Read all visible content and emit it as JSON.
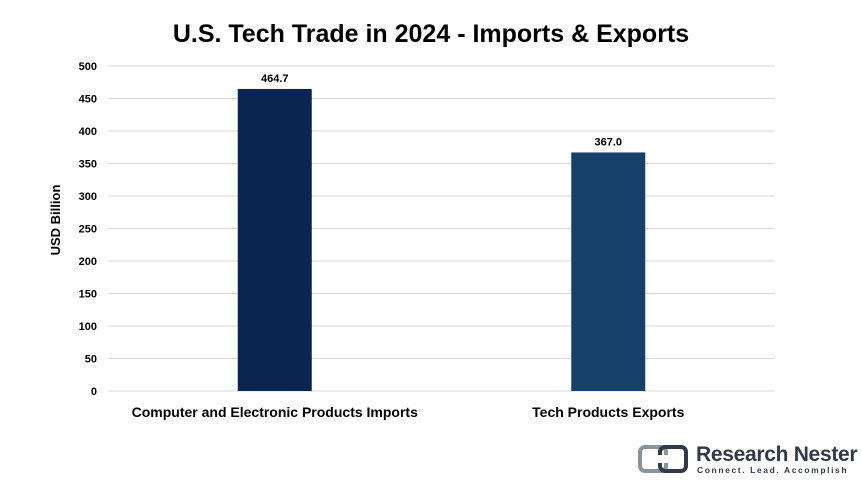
{
  "chart_data": {
    "type": "bar",
    "title": "U.S. Tech Trade in 2024 - Imports & Exports",
    "xlabel": "",
    "ylabel": "USD Billion",
    "categories": [
      "Computer and Electronic Products Imports",
      "Tech Products Exports"
    ],
    "values": [
      464.7,
      367.0
    ],
    "value_labels": [
      "464.7",
      "367.0"
    ],
    "bar_colors": [
      "#0b2553",
      "#163f6a"
    ],
    "ylim": [
      0,
      500
    ],
    "yticks": [
      0,
      50,
      100,
      150,
      200,
      250,
      300,
      350,
      400,
      450,
      500
    ],
    "grid": true,
    "legend": "none"
  },
  "logo": {
    "name": "Research Nester",
    "tagline": "Connect. Lead. Accomplish",
    "icon": "research-nester-logo-icon",
    "color": "#2f3b4c"
  }
}
